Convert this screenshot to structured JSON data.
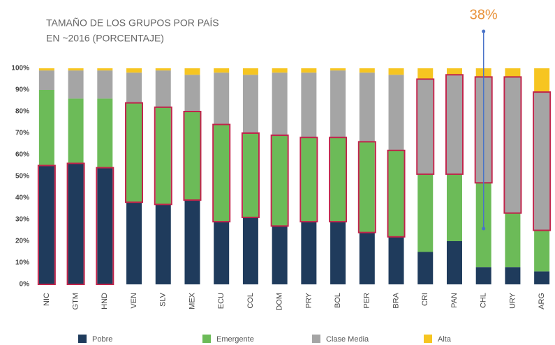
{
  "chart_data": {
    "type": "stacked_bar",
    "title": [
      "TAMAÑO DE LOS GRUPOS POR PAÍS",
      "EN ~2016 (PORCENTAJE)"
    ],
    "categories": [
      "NIC",
      "GTM",
      "HND",
      "VEN",
      "SLV",
      "MEX",
      "ECU",
      "COL",
      "DOM",
      "PRY",
      "BOL",
      "PER",
      "BRA",
      "CRI",
      "PAN",
      "CHL",
      "URY",
      "ARG"
    ],
    "series": [
      {
        "name": "Pobre",
        "color": "#1f3b5c",
        "values": [
          55,
          56,
          54,
          38,
          37,
          39,
          29,
          31,
          27,
          29,
          29,
          24,
          22,
          15,
          20,
          8,
          8,
          6
        ]
      },
      {
        "name": "Emergente",
        "color": "#6cbb58",
        "values": [
          35,
          30,
          32,
          46,
          45,
          41,
          45,
          39,
          42,
          39,
          39,
          42,
          40,
          36,
          31,
          39,
          25,
          19
        ]
      },
      {
        "name": "Clase Media",
        "color": "#a5a5a5",
        "values": [
          9,
          13,
          13,
          14,
          17,
          17,
          24,
          27,
          29,
          30,
          31,
          32,
          35,
          44,
          46,
          49,
          63,
          64
        ]
      },
      {
        "name": "Alta",
        "color": "#f6c521",
        "values": [
          1,
          1,
          1,
          2,
          1,
          3,
          2,
          3,
          2,
          2,
          1,
          2,
          3,
          5,
          3,
          4,
          4,
          11
        ]
      }
    ],
    "highlight": [
      0,
      0,
      0,
      1,
      1,
      1,
      1,
      1,
      1,
      1,
      1,
      1,
      1,
      2,
      2,
      2,
      2,
      2
    ],
    "highlight_color": "#c0244b",
    "annotation": {
      "text": "38%",
      "category": "CHL",
      "color": "#e8923a",
      "line_color": "#4a73c8"
    },
    "ylim": [
      0,
      100
    ],
    "yticks": [
      {
        "value": 0,
        "label": "0%"
      },
      {
        "value": 10,
        "label": "10%"
      },
      {
        "value": 20,
        "label": "20%"
      },
      {
        "value": 30,
        "label": "30%"
      },
      {
        "value": 40,
        "label": "40%"
      },
      {
        "value": 50,
        "label": "50%"
      },
      {
        "value": 60,
        "label": "60%"
      },
      {
        "value": 70,
        "label": "70%"
      },
      {
        "value": 80,
        "label": "80%"
      },
      {
        "value": 90,
        "label": "90%"
      },
      {
        "value": 100,
        "label": "100%"
      }
    ],
    "grid": false
  }
}
